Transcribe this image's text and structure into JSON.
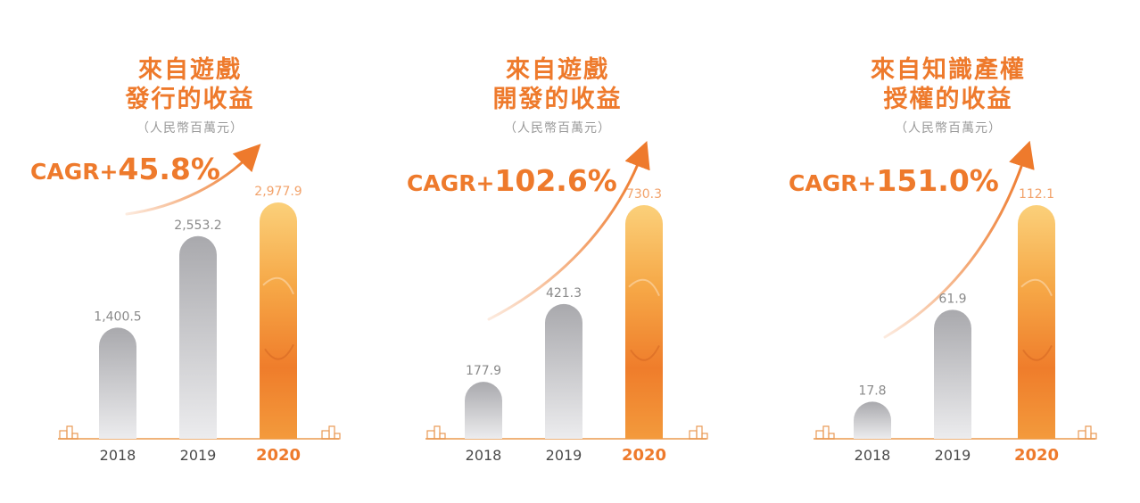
{
  "accent_color": "#ee7a2c",
  "bar_gray": "#b4b4b8",
  "chart_data": [
    {
      "type": "bar",
      "title_line1": "來自遊戲",
      "title_line2": "發行的收益",
      "unit": "（人民幣百萬元）",
      "cagr_prefix": "CAGR+",
      "cagr_value": "45.8%",
      "categories": [
        "2018",
        "2019",
        "2020"
      ],
      "values": [
        1400.5,
        2553.2,
        2977.9
      ],
      "value_labels": [
        "1,400.5",
        "2,553.2",
        "2,977.9"
      ],
      "highlight_index": 2
    },
    {
      "type": "bar",
      "title_line1": "來自遊戲",
      "title_line2": "開發的收益",
      "unit": "（人民幣百萬元）",
      "cagr_prefix": "CAGR+",
      "cagr_value": "102.6%",
      "categories": [
        "2018",
        "2019",
        "2020"
      ],
      "values": [
        177.9,
        421.3,
        730.3
      ],
      "value_labels": [
        "177.9",
        "421.3",
        "730.3"
      ],
      "highlight_index": 2
    },
    {
      "type": "bar",
      "title_line1": "來自知識產權",
      "title_line2": "授權的收益",
      "unit": "（人民幣百萬元）",
      "cagr_prefix": "CAGR+",
      "cagr_value": "151.0%",
      "categories": [
        "2018",
        "2019",
        "2020"
      ],
      "values": [
        17.8,
        61.9,
        112.1
      ],
      "value_labels": [
        "17.8",
        "61.9",
        "112.1"
      ],
      "highlight_index": 2
    }
  ]
}
